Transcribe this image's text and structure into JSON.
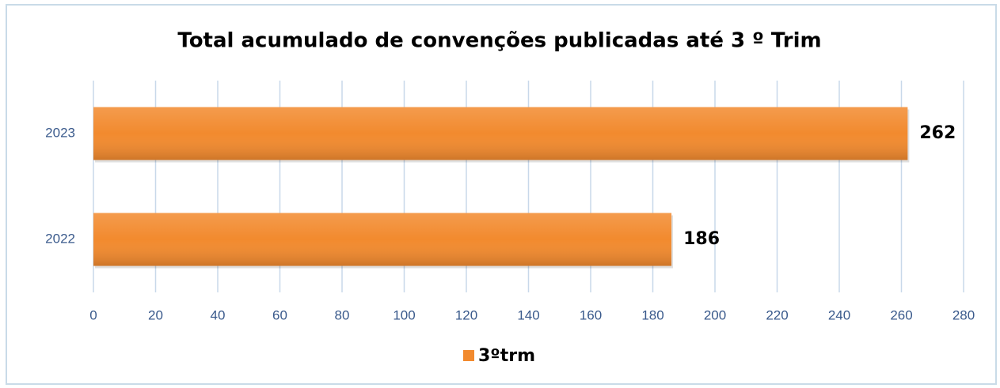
{
  "chart_data": {
    "type": "hbar",
    "title": "Total  acumulado de convenções publicadas até 3 º Trim",
    "categories": [
      "2022",
      "2023"
    ],
    "series": [
      {
        "name": "3ºtrm",
        "color": "#f28a2e",
        "values": [
          186,
          262
        ]
      }
    ],
    "xlim": [
      0,
      280
    ],
    "xticks": [
      0,
      20,
      40,
      60,
      80,
      100,
      120,
      140,
      160,
      180,
      200,
      220,
      240,
      260,
      280
    ],
    "grid": true,
    "legend": "bottom"
  }
}
